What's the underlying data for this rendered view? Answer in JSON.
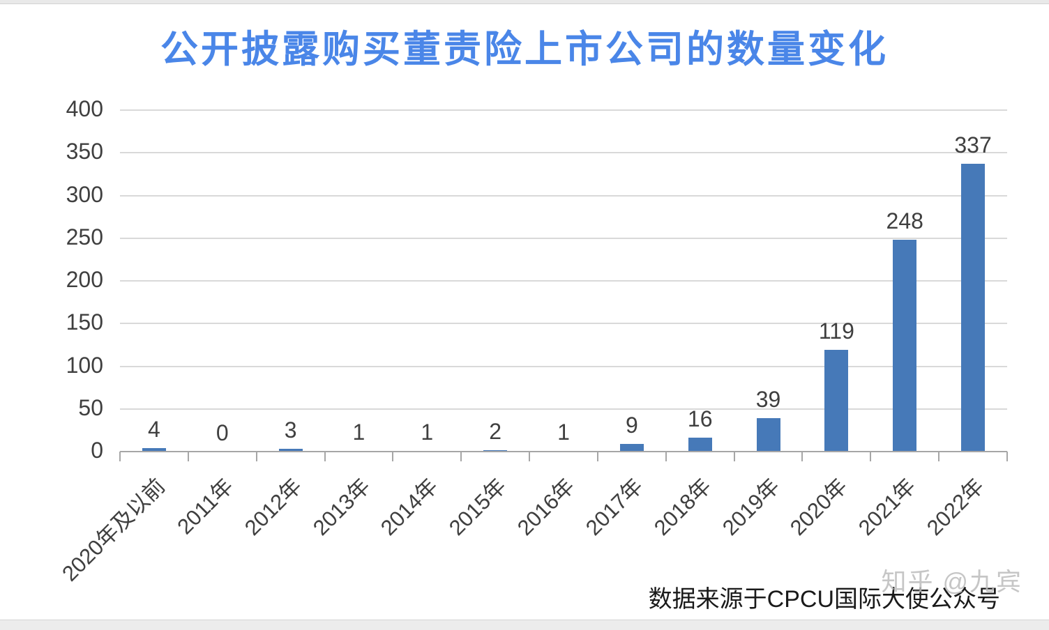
{
  "title": {
    "text": "公开披露购买董责险上市公司的数量变化",
    "color": "#4a86e8"
  },
  "chart_data": {
    "type": "bar",
    "categories": [
      "2020年及以前",
      "2011年",
      "2012年",
      "2013年",
      "2014年",
      "2015年",
      "2016年",
      "2017年",
      "2018年",
      "2019年",
      "2020年",
      "2021年",
      "2022年"
    ],
    "values": [
      4,
      0,
      3,
      1,
      1,
      2,
      1,
      9,
      16,
      39,
      119,
      248,
      337
    ],
    "title": "公开披露购买董责险上市公司的数量变化",
    "xlabel": "",
    "ylabel": "",
    "ylim": [
      0,
      400
    ],
    "yticks": [
      0,
      50,
      100,
      150,
      200,
      250,
      300,
      350,
      400
    ],
    "grid": true,
    "legend": false,
    "data_labels": true,
    "bar_color": "#4679b8",
    "gridline_color": "#d9d9d9",
    "axis_color": "#a6a6a6",
    "label_color": "#3f3f3f"
  },
  "footer": {
    "source_text": "数据来源于CPCU国际大使公众号",
    "watermark": "知乎 @九宾"
  }
}
